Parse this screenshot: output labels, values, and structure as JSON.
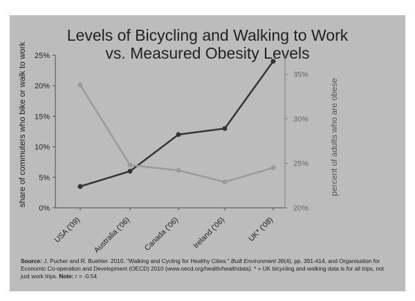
{
  "chart_data": {
    "type": "line",
    "title": "Levels of Bicycling and Walking to Work",
    "subtitle": "vs. Measured Obesity Levels",
    "categories": [
      "USA ('09)",
      "Australia ('06)",
      "Canada ('06)",
      "Ireland ('06)",
      "UK* ('08)"
    ],
    "left_axis": {
      "label": "share of commuters who bike or walk to work",
      "range": [
        0,
        25
      ],
      "ticks": [
        "0%",
        "5%",
        "10%",
        "15%",
        "20%",
        "25%"
      ]
    },
    "right_axis": {
      "label": "percent of adults who are obese",
      "range": [
        20,
        37.14
      ],
      "ticks": [
        "20%",
        "25%",
        "30%",
        "35%"
      ]
    },
    "series": [
      {
        "axis": "left",
        "color": "#333333",
        "values": [
          3.5,
          6,
          12,
          13,
          24
        ]
      },
      {
        "axis": "right",
        "color": "#9a9a9a",
        "values": [
          33.8,
          24.8,
          24.2,
          22.9,
          24.5
        ]
      }
    ],
    "grid": false,
    "legend": "none"
  },
  "source": {
    "prefix": "Source:",
    "text1": " J. Pucher and R. Buehler. 2010. \"Walking and Cycling for Healthy Cities.\" ",
    "journal": "Built Environment 36",
    "text2": "(4), pp. 391-414, and Organisation for Economic Co-operation and Development (OECD) 2010 (www.oecd.org/health/healthdata). * = UK bicycling and walking data is for all trips, not just work trips. ",
    "note_label": "Note:",
    "note_r": "r",
    "note_value": " = -0.54."
  }
}
